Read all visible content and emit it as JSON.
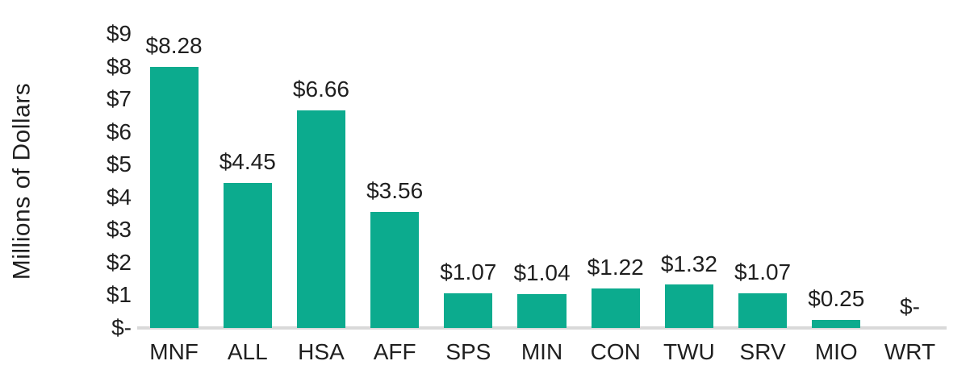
{
  "chart_data": {
    "type": "bar",
    "title": "",
    "xlabel": "",
    "ylabel": "Millions of Dollars",
    "categories": [
      "MNF",
      "ALL",
      "HSA",
      "AFF",
      "SPS",
      "MIN",
      "CON",
      "TWU",
      "SRV",
      "MIO",
      "WRT"
    ],
    "values": [
      8.28,
      4.45,
      6.66,
      3.56,
      1.07,
      1.04,
      1.22,
      1.32,
      1.07,
      0.25,
      0
    ],
    "data_labels": [
      "$8.28",
      "$4.45",
      "$6.66",
      "$3.56",
      "$1.07",
      "$1.04",
      "$1.22",
      "$1.32",
      "$1.07",
      "$0.25",
      "$-"
    ],
    "y_ticks": [
      {
        "label": "$9",
        "value": 9
      },
      {
        "label": "$8",
        "value": 8
      },
      {
        "label": "$7",
        "value": 7
      },
      {
        "label": "$6",
        "value": 6
      },
      {
        "label": "$5",
        "value": 5
      },
      {
        "label": "$4",
        "value": 4
      },
      {
        "label": "$3",
        "value": 3
      },
      {
        "label": "$2",
        "value": 2
      },
      {
        "label": "$1",
        "value": 1
      },
      {
        "label": "$-",
        "value": 0
      }
    ],
    "ylim": [
      0,
      9
    ],
    "grid": false,
    "legend": false,
    "bar_color": "#0CAB8E",
    "axis_line_color": "#D9D9D9",
    "text_color": "#1F1F1F",
    "background_color": "#FFFFFF"
  }
}
